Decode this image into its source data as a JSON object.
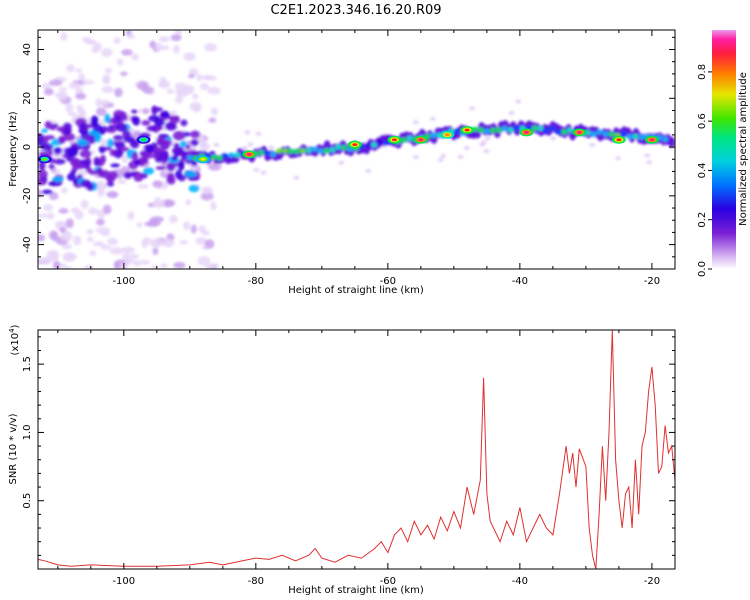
{
  "title": "C2E1.2023.346.16.20.R09",
  "chart_data": [
    {
      "type": "heatmap",
      "xlabel": "Height of straight line (km)",
      "ylabel": "Frequency (Hz)",
      "xlim": [
        -113,
        -16.5
      ],
      "ylim": [
        -50,
        48
      ],
      "x_ticks": [
        -100,
        -80,
        -60,
        -40,
        -20
      ],
      "y_ticks": [
        -40,
        -20,
        0,
        20,
        40
      ],
      "colorbar": {
        "label": "Normalized spectral amplitude",
        "range": [
          0,
          0.97
        ],
        "ticks": [
          0.0,
          0.2,
          0.4,
          0.6,
          0.8
        ],
        "colors": [
          "#ffffff",
          "#cfa8f0",
          "#7a1fd6",
          "#3a00e0",
          "#0040ff",
          "#00b4ff",
          "#00e6c8",
          "#00e64a",
          "#6ee600",
          "#e6e600",
          "#ff8c00",
          "#ff1e1e",
          "#ff1e8c",
          "#ee88ee"
        ]
      },
      "ridge": {
        "x": [
          -113,
          -105,
          -100,
          -95,
          -90,
          -85,
          -80,
          -75,
          -70,
          -65,
          -60,
          -55,
          -50,
          -45,
          -40,
          -35,
          -30,
          -25,
          -20,
          -17
        ],
        "y": [
          -5,
          -3,
          0,
          2,
          -4,
          -4,
          -3,
          -2,
          -1,
          0,
          2,
          4,
          6,
          7,
          8,
          7,
          6,
          5,
          4,
          2
        ]
      },
      "hotspots": [
        {
          "x": -81,
          "y": -3,
          "v": 0.9
        },
        {
          "x": -65,
          "y": 1,
          "v": 0.85
        },
        {
          "x": -59,
          "y": 3,
          "v": 0.85
        },
        {
          "x": -55,
          "y": 3,
          "v": 0.9
        },
        {
          "x": -51,
          "y": 5,
          "v": 0.8
        },
        {
          "x": -48,
          "y": 7,
          "v": 0.85
        },
        {
          "x": -39,
          "y": 6,
          "v": 0.9
        },
        {
          "x": -31,
          "y": 6,
          "v": 0.92
        },
        {
          "x": -25,
          "y": 3,
          "v": 0.85
        },
        {
          "x": -20,
          "y": 3,
          "v": 0.9
        },
        {
          "x": -112,
          "y": -5,
          "v": 0.6
        },
        {
          "x": -97,
          "y": 3,
          "v": 0.55
        },
        {
          "x": -88,
          "y": -5,
          "v": 0.7
        }
      ]
    },
    {
      "type": "line",
      "xlabel": "Height of straight line (km)",
      "ylabel": "SNR (10 * v/v)",
      "y_multiplier": "(x10",
      "y_multiplier_exp": "4",
      "y_multiplier_close": ")",
      "xlim": [
        -113,
        -16.5
      ],
      "ylim": [
        0,
        1.75
      ],
      "x_ticks": [
        -100,
        -80,
        -60,
        -40,
        -20
      ],
      "y_ticks": [
        0.5,
        1.0,
        1.5
      ],
      "y_tick_labels": [
        "0.5",
        "1.0",
        "1.5"
      ],
      "color": "#e03030",
      "series": [
        {
          "x": [
            -113,
            -112,
            -110,
            -108,
            -105,
            -100,
            -95,
            -90,
            -87,
            -85,
            -82,
            -80,
            -78,
            -76,
            -74,
            -72,
            -71,
            -70,
            -68,
            -66,
            -64,
            -62,
            -61,
            -60,
            -59,
            -58,
            -57,
            -56,
            -55,
            -54,
            -53,
            -52,
            -51,
            -50,
            -49,
            -48,
            -47,
            -46,
            -45.5,
            -45,
            -44.5,
            -44,
            -43,
            -42,
            -41,
            -40,
            -39,
            -38,
            -37,
            -36,
            -35,
            -34,
            -33,
            -32.5,
            -32,
            -31.5,
            -31,
            -30,
            -29.5,
            -29,
            -28.5,
            -28,
            -27.5,
            -27,
            -26.5,
            -26,
            -25.5,
            -25,
            -24.5,
            -24,
            -23.5,
            -23,
            -22.5,
            -22,
            -21.5,
            -21,
            -20.5,
            -20,
            -19.5,
            -19,
            -18.5,
            -18,
            -17.5,
            -17,
            -16.5
          ],
          "y": [
            0.07,
            0.06,
            0.03,
            0.02,
            0.03,
            0.02,
            0.02,
            0.03,
            0.05,
            0.03,
            0.06,
            0.08,
            0.07,
            0.1,
            0.06,
            0.1,
            0.15,
            0.08,
            0.05,
            0.1,
            0.08,
            0.15,
            0.2,
            0.12,
            0.25,
            0.3,
            0.2,
            0.35,
            0.25,
            0.32,
            0.22,
            0.38,
            0.28,
            0.42,
            0.3,
            0.6,
            0.4,
            0.65,
            1.4,
            0.55,
            0.35,
            0.3,
            0.2,
            0.35,
            0.25,
            0.45,
            0.2,
            0.3,
            0.4,
            0.3,
            0.25,
            0.55,
            0.9,
            0.7,
            0.85,
            0.6,
            0.88,
            0.75,
            0.3,
            0.1,
            0.0,
            0.4,
            0.9,
            0.5,
            1.0,
            1.75,
            0.8,
            0.5,
            0.3,
            0.55,
            0.6,
            0.3,
            0.8,
            0.4,
            0.9,
            1.0,
            1.3,
            1.48,
            1.2,
            0.7,
            0.75,
            1.05,
            0.85,
            0.9,
            0.65
          ]
        }
      ]
    }
  ]
}
